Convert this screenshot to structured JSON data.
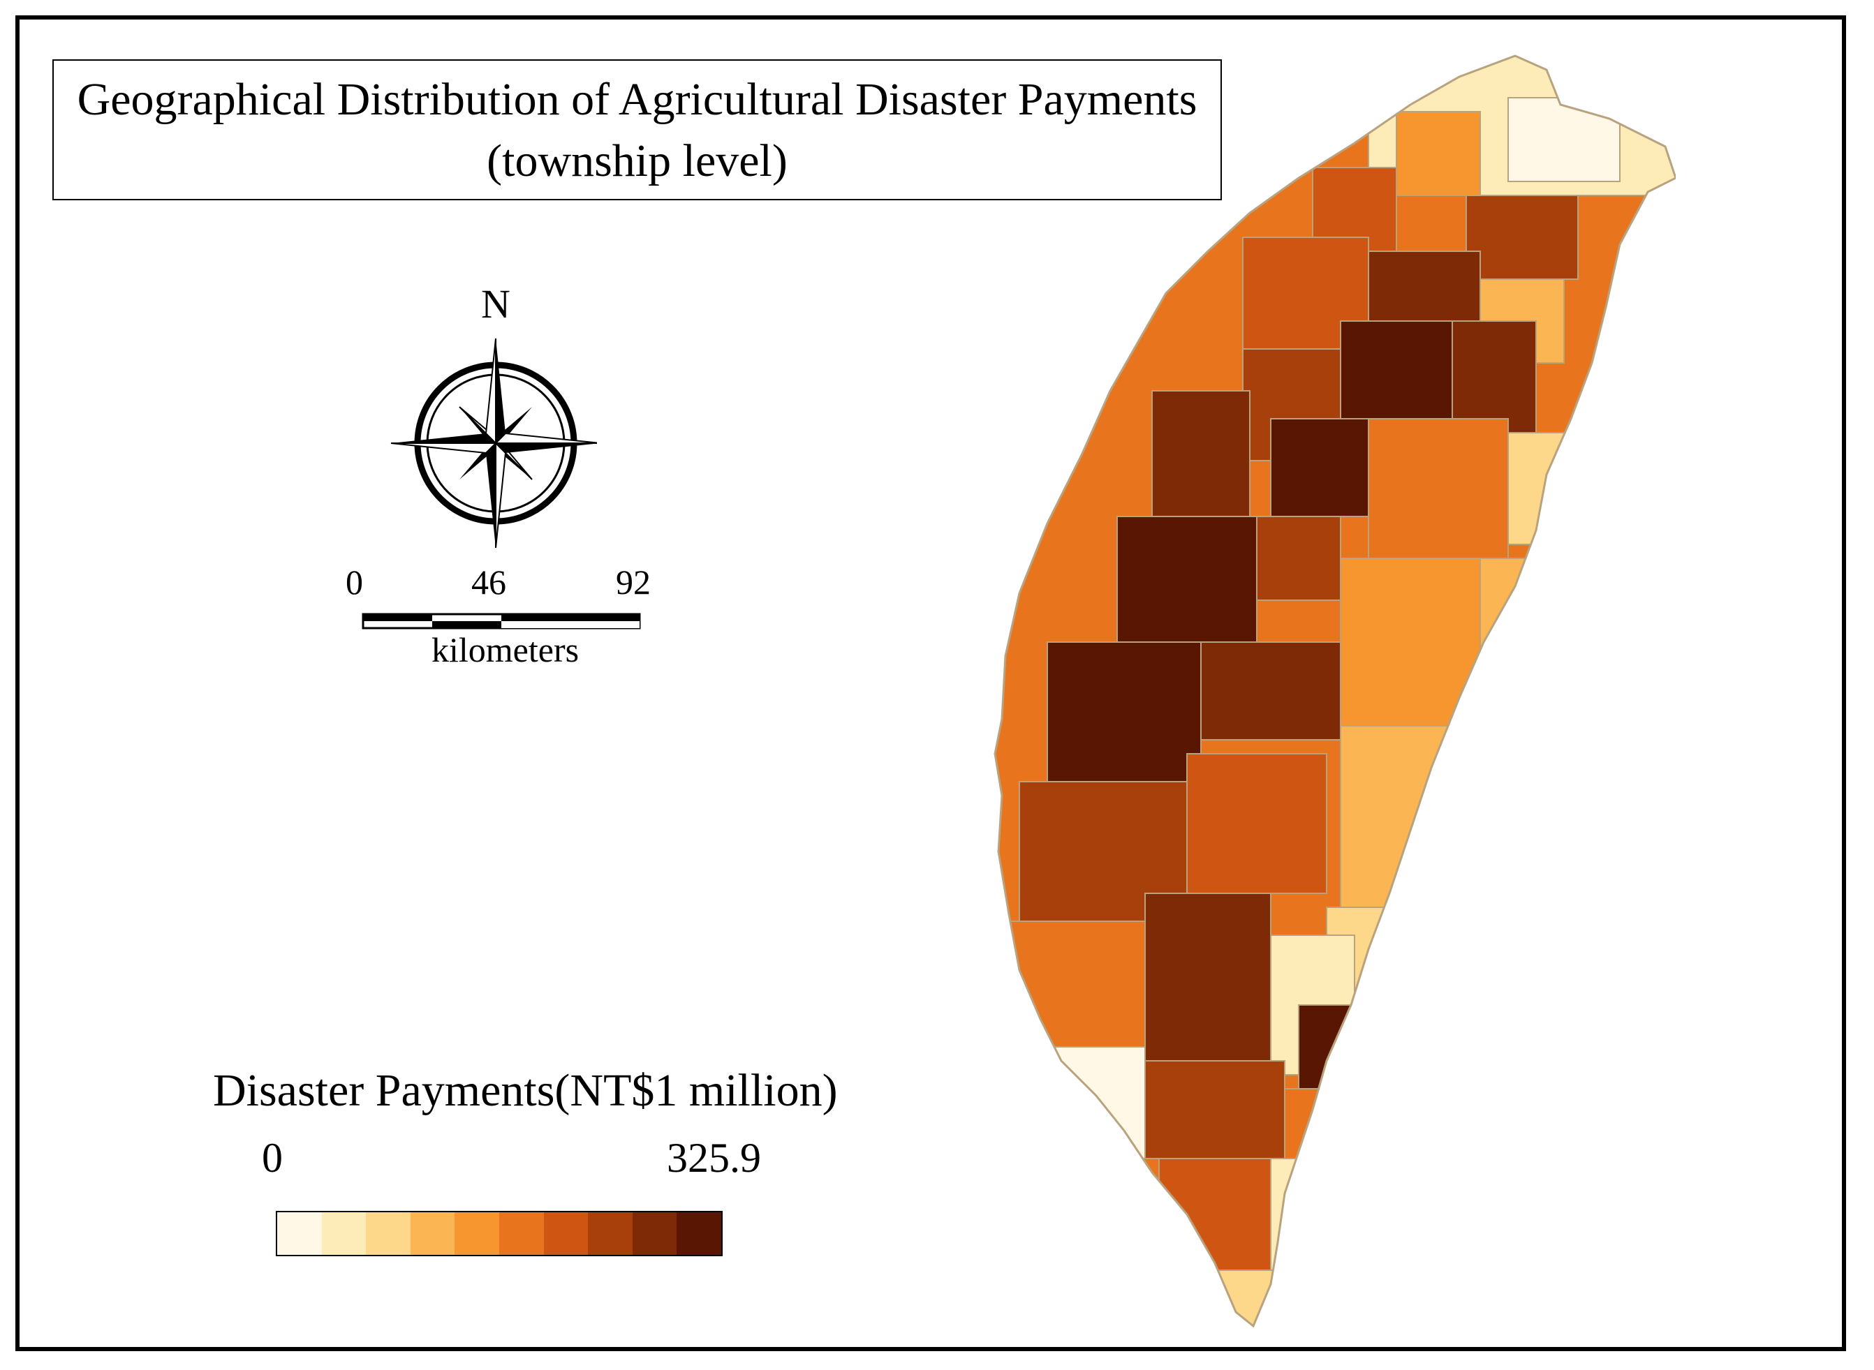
{
  "title": {
    "line1": "Geographical Distribution of Agricultural Disaster Payments",
    "line2": "(township level)"
  },
  "compass": {
    "north_label": "N",
    "icon": "compass-rose-icon"
  },
  "scale_bar": {
    "ticks": [
      "0",
      "46",
      "92"
    ],
    "unit": "kilometers"
  },
  "legend": {
    "title": "Disaster Payments(NT$1 million)",
    "min_label": "0",
    "max_label": "325.9",
    "colors": [
      "#fff8e6",
      "#feecb8",
      "#fdd88a",
      "#fbb552",
      "#f7962e",
      "#e9741e",
      "#cf5612",
      "#a8400b",
      "#7e2a06",
      "#581603"
    ]
  },
  "map": {
    "region": "Taiwan",
    "outline_color": "#b9a27e",
    "land_base_color": "#e9741e"
  }
}
